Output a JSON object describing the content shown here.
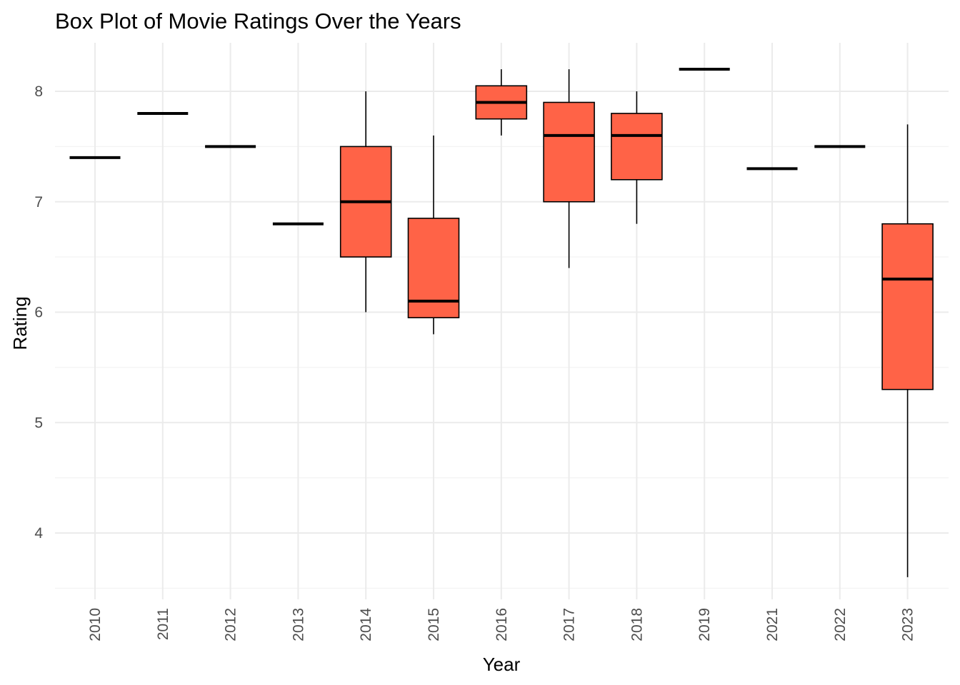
{
  "chart_data": {
    "type": "box",
    "title": "Box Plot of Movie Ratings Over the Years",
    "xlabel": "Year",
    "ylabel": "Rating",
    "ylim": [
      3.5,
      8.45
    ],
    "yticks": [
      4,
      5,
      6,
      7,
      8
    ],
    "grid": true,
    "legend": "none",
    "box_fill": "#FF6347",
    "box_stroke": "#000000",
    "categories": [
      "2010",
      "2011",
      "2012",
      "2013",
      "2014",
      "2015",
      "2016",
      "2017",
      "2018",
      "2019",
      "2021",
      "2022",
      "2023"
    ],
    "boxes": [
      {
        "x": "2010",
        "min": 7.4,
        "q1": 7.4,
        "median": 7.4,
        "q3": 7.4,
        "max": 7.4
      },
      {
        "x": "2011",
        "min": 7.8,
        "q1": 7.8,
        "median": 7.8,
        "q3": 7.8,
        "max": 7.8
      },
      {
        "x": "2012",
        "min": 7.5,
        "q1": 7.5,
        "median": 7.5,
        "q3": 7.5,
        "max": 7.5
      },
      {
        "x": "2013",
        "min": 6.8,
        "q1": 6.8,
        "median": 6.8,
        "q3": 6.8,
        "max": 6.8
      },
      {
        "x": "2014",
        "min": 6.0,
        "q1": 6.5,
        "median": 7.0,
        "q3": 7.5,
        "max": 8.0
      },
      {
        "x": "2015",
        "min": 5.8,
        "q1": 5.95,
        "median": 6.1,
        "q3": 6.85,
        "max": 7.6
      },
      {
        "x": "2016",
        "min": 7.6,
        "q1": 7.75,
        "median": 7.9,
        "q3": 8.05,
        "max": 8.2
      },
      {
        "x": "2017",
        "min": 6.4,
        "q1": 7.0,
        "median": 7.6,
        "q3": 7.9,
        "max": 8.2
      },
      {
        "x": "2018",
        "min": 6.8,
        "q1": 7.2,
        "median": 7.6,
        "q3": 7.8,
        "max": 8.0
      },
      {
        "x": "2019",
        "min": 8.2,
        "q1": 8.2,
        "median": 8.2,
        "q3": 8.2,
        "max": 8.2
      },
      {
        "x": "2021",
        "min": 7.3,
        "q1": 7.3,
        "median": 7.3,
        "q3": 7.3,
        "max": 7.3
      },
      {
        "x": "2022",
        "min": 7.5,
        "q1": 7.5,
        "median": 7.5,
        "q3": 7.5,
        "max": 7.5
      },
      {
        "x": "2023",
        "min": 3.6,
        "q1": 5.3,
        "median": 6.3,
        "q3": 6.8,
        "max": 7.7
      }
    ]
  }
}
